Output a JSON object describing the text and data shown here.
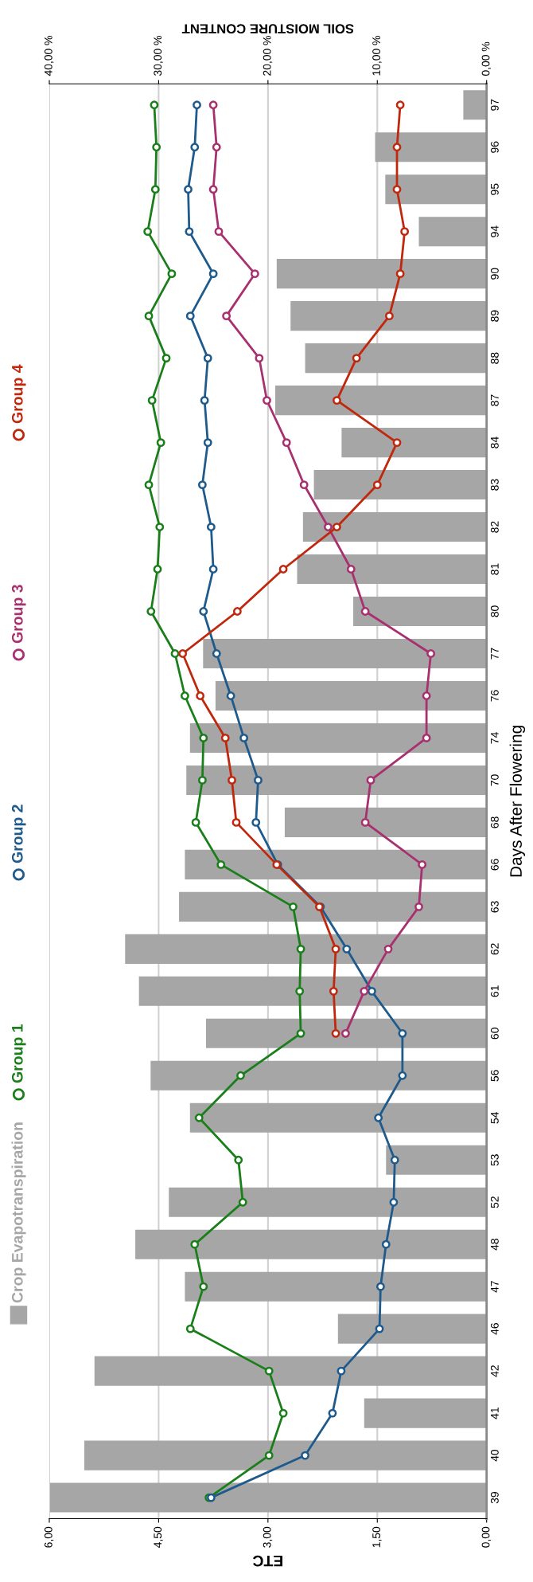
{
  "chart_data": {
    "type": "bar",
    "orientation": "horizontal",
    "xlabel": "ETC",
    "x2label": "SOIL MOISTURE CONTENT",
    "ylabel": "Days After Flowering",
    "categories": [
      "97",
      "96",
      "95",
      "94",
      "90",
      "89",
      "88",
      "87",
      "84",
      "83",
      "82",
      "81",
      "80",
      "77",
      "76",
      "74",
      "70",
      "68",
      "66",
      "63",
      "62",
      "61",
      "60",
      "56",
      "54",
      "53",
      "52",
      "48",
      "47",
      "46",
      "42",
      "41",
      "40",
      "39"
    ],
    "series": [
      {
        "name": "Crop Evapotranspiration",
        "type": "bar",
        "color": "#a6a6a6",
        "values": [
          0.32,
          1.53,
          1.39,
          0.93,
          2.88,
          2.69,
          2.49,
          2.9,
          1.99,
          2.37,
          2.52,
          2.6,
          1.83,
          3.89,
          3.72,
          4.07,
          4.12,
          2.77,
          4.14,
          4.22,
          4.96,
          4.77,
          3.85,
          4.61,
          4.07,
          1.38,
          4.36,
          4.82,
          4.14,
          2.04,
          5.38,
          1.68,
          5.52,
          5.99
        ]
      },
      {
        "name": "Group 1",
        "type": "line",
        "axis": "x2",
        "color": "#1a7f1a",
        "values": [
          30.4,
          30.2,
          30.3,
          31.0,
          28.8,
          30.9,
          29.3,
          30.6,
          29.8,
          30.9,
          29.9,
          30.1,
          30.7,
          28.5,
          27.6,
          25.9,
          26.0,
          26.6,
          24.3,
          17.7,
          17.0,
          17.1,
          17.0,
          22.5,
          26.3,
          22.7,
          22.3,
          26.7,
          25.9,
          27.1,
          19.9,
          18.6,
          19.9,
          25.4
        ]
      },
      {
        "name": "Group 2",
        "type": "line",
        "axis": "x2",
        "color": "#1f5a8c",
        "values": [
          26.5,
          26.7,
          27.3,
          27.2,
          25.0,
          27.1,
          25.5,
          25.8,
          25.5,
          26.0,
          25.2,
          25.0,
          25.9,
          24.7,
          23.4,
          22.2,
          20.9,
          21.1,
          19.1,
          15.2,
          12.8,
          10.5,
          7.7,
          7.7,
          9.9,
          8.4,
          8.5,
          9.2,
          9.7,
          9.8,
          13.3,
          14.1,
          16.6,
          25.2
        ]
      },
      {
        "name": "Group 3",
        "type": "line",
        "axis": "x2",
        "color": "#a8306f",
        "values": [
          25.0,
          24.7,
          25.0,
          24.5,
          21.2,
          23.8,
          20.8,
          20.1,
          18.3,
          16.7,
          14.5,
          12.4,
          11.1,
          5.1,
          5.5,
          5.5,
          10.6,
          11.1,
          5.9,
          6.2,
          9.0,
          11.2,
          12.9,
          null,
          null,
          null,
          null,
          null,
          null,
          null,
          null,
          null,
          null,
          null
        ]
      },
      {
        "name": "Group 4",
        "type": "line",
        "axis": "x2",
        "color": "#c0280e",
        "values": [
          7.9,
          8.2,
          8.2,
          7.5,
          7.9,
          8.9,
          11.9,
          13.7,
          8.2,
          10.0,
          13.7,
          18.6,
          22.8,
          27.8,
          26.2,
          23.9,
          23.3,
          22.9,
          19.2,
          15.3,
          13.8,
          14.0,
          13.8,
          null,
          null,
          null,
          null,
          null,
          null,
          null,
          null,
          null,
          null,
          null
        ]
      }
    ],
    "xlim": [
      6,
      0
    ],
    "xticks": [
      {
        "value": 6,
        "label": "6,00"
      },
      {
        "value": 4.5,
        "label": "4,50"
      },
      {
        "value": 3,
        "label": "3,00"
      },
      {
        "value": 1.5,
        "label": "1,50"
      },
      {
        "value": 0,
        "label": "0,00"
      }
    ],
    "x2lim": [
      40,
      0
    ],
    "x2ticks": [
      {
        "value": 40,
        "label": "40,00 %"
      },
      {
        "value": 30,
        "label": "30,00 %"
      },
      {
        "value": 20,
        "label": "20,00 %"
      },
      {
        "value": 10,
        "label": "10,00 %"
      },
      {
        "value": 0,
        "label": "0,00 %"
      }
    ],
    "grid": "x",
    "legend": "left",
    "marker": "circle"
  }
}
